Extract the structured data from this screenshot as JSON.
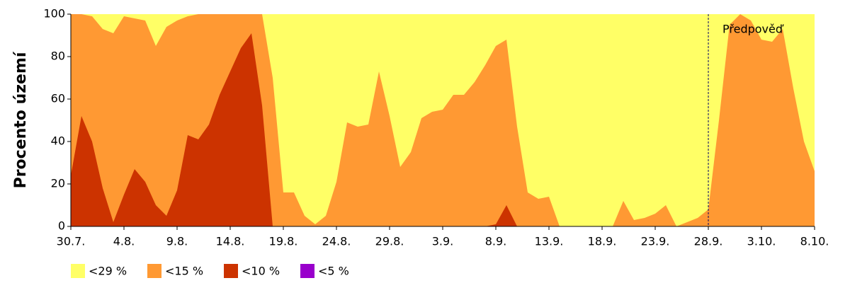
{
  "chart_data": {
    "type": "area",
    "y_label": "Procento území",
    "categories": [
      "30.7.",
      null,
      null,
      null,
      null,
      "4.8.",
      null,
      null,
      null,
      null,
      "9.8.",
      null,
      null,
      null,
      null,
      "14.8.",
      null,
      null,
      null,
      null,
      "19.8.",
      null,
      null,
      null,
      null,
      "24.8.",
      null,
      null,
      null,
      null,
      "29.8.",
      null,
      null,
      null,
      null,
      "3.9.",
      null,
      null,
      null,
      null,
      "8.9.",
      null,
      null,
      null,
      null,
      "13.9.",
      null,
      null,
      null,
      null,
      "18.9.",
      null,
      null,
      null,
      null,
      "23.9.",
      null,
      null,
      null,
      null,
      "28.9.",
      null,
      null,
      null,
      null,
      "3.10.",
      null,
      null,
      null,
      null,
      "8.10."
    ],
    "series": [
      {
        "name": "<29 %",
        "color": "#ffff66",
        "values": [
          100,
          100,
          100,
          100,
          100,
          100,
          100,
          100,
          100,
          100,
          100,
          100,
          100,
          100,
          100,
          100,
          100,
          100,
          100,
          100,
          100,
          100,
          100,
          100,
          100,
          100,
          100,
          100,
          100,
          100,
          100,
          100,
          100,
          100,
          100,
          100,
          100,
          100,
          100,
          100,
          100,
          100,
          100,
          100,
          100,
          100,
          100,
          100,
          100,
          100,
          100,
          100,
          100,
          100,
          100,
          100,
          100,
          100,
          100,
          100,
          100,
          100,
          100,
          100,
          100,
          100,
          100,
          100,
          100,
          100,
          100
        ]
      },
      {
        "name": "<15 %",
        "color": "#ff9933",
        "values": [
          100,
          100,
          99,
          93,
          91,
          99,
          98,
          97,
          85,
          94,
          97,
          99,
          100,
          100,
          100,
          100,
          100,
          100,
          100,
          70,
          16,
          16,
          5,
          1,
          5,
          21,
          49,
          47,
          48,
          73,
          52,
          28,
          35,
          51,
          54,
          55,
          62,
          62,
          68,
          76,
          85,
          88,
          47,
          16,
          13,
          14,
          0,
          0,
          0,
          0,
          0,
          0,
          12,
          3,
          4,
          6,
          10,
          0,
          2,
          4,
          8,
          50,
          95,
          100,
          97,
          88,
          87,
          93,
          65,
          40,
          26
        ]
      },
      {
        "name": "<10 %",
        "color": "#cc3300",
        "values": [
          24,
          52,
          40,
          18,
          2,
          15,
          27,
          21,
          10,
          5,
          17,
          43,
          41,
          48,
          62,
          73,
          84,
          91,
          57,
          0,
          0,
          0,
          0,
          0,
          0,
          0,
          0,
          0,
          0,
          0,
          0,
          0,
          0,
          0,
          0,
          0,
          0,
          0,
          0,
          0,
          1,
          10,
          0,
          0,
          0,
          0,
          0,
          0,
          0,
          0,
          0,
          0,
          0,
          0,
          0,
          0,
          0,
          0,
          0,
          0,
          0,
          0,
          0,
          0,
          0,
          0,
          0,
          0,
          0,
          0,
          0
        ]
      },
      {
        "name": "<5 %",
        "color": "#9900cc",
        "values": [
          0,
          0,
          0,
          0,
          0,
          0,
          0,
          0,
          0,
          0,
          0,
          0,
          0,
          0,
          0,
          0,
          0,
          0,
          0,
          0,
          0,
          0,
          0,
          0,
          0,
          0,
          0,
          0,
          0,
          0,
          0,
          0,
          0,
          0,
          0,
          0,
          0,
          0,
          0,
          0,
          0,
          0,
          0,
          0,
          0,
          0,
          0,
          0,
          0,
          0,
          0,
          0,
          0,
          0,
          0,
          0,
          0,
          0,
          0,
          0,
          0,
          0,
          0,
          0,
          0,
          0,
          0,
          0,
          0,
          0,
          0
        ]
      }
    ],
    "ylim": [
      0,
      100
    ],
    "yticks": [
      0,
      20,
      40,
      60,
      80,
      100
    ],
    "forecast": {
      "label": "Předpověď",
      "start": "28.9."
    }
  }
}
